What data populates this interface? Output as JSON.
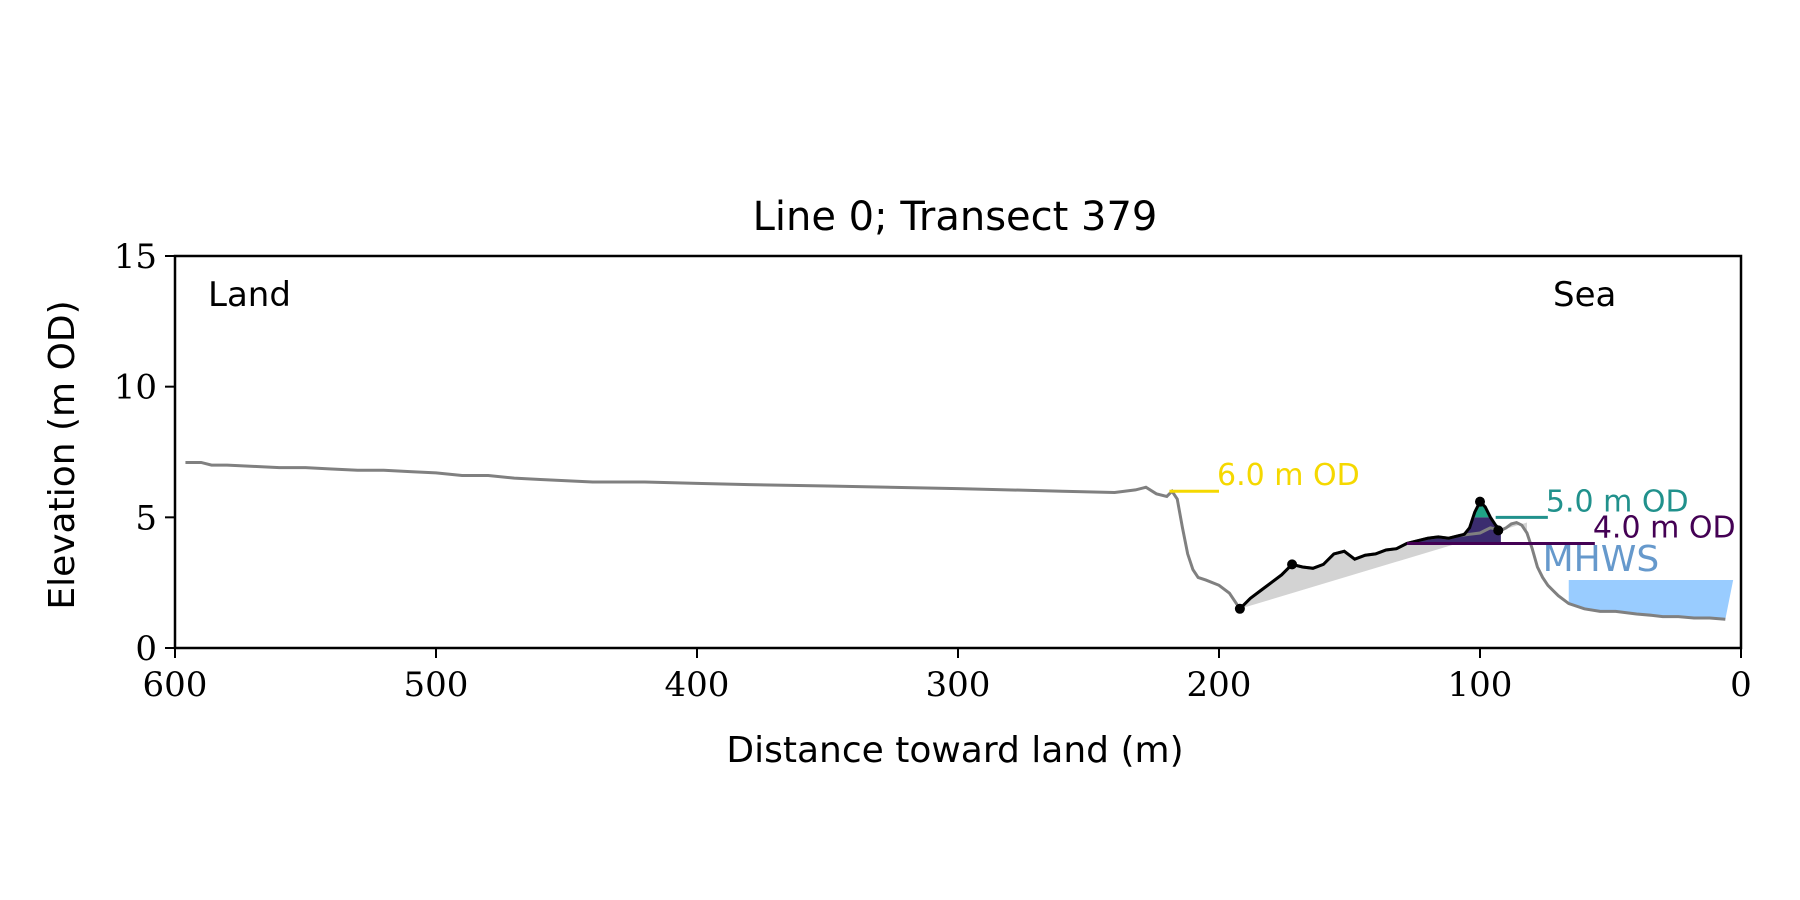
{
  "chart_data": {
    "type": "line",
    "title": "Line 0; Transect 379",
    "xlabel": "Distance toward land (m)",
    "ylabel": "Elevation (m OD)",
    "xlim": [
      600,
      0
    ],
    "ylim": [
      0,
      15
    ],
    "x_ticks": [
      600,
      500,
      400,
      300,
      200,
      100,
      0
    ],
    "x_tick_labels": [
      "600",
      "500",
      "400",
      "300",
      "200",
      "100",
      "0"
    ],
    "y_ticks": [
      0,
      5,
      10,
      15
    ],
    "y_tick_labels": [
      "0",
      "5",
      "10",
      "15"
    ],
    "grid": false,
    "legend": "none",
    "annotations": {
      "land": "Land",
      "sea": "Sea",
      "mhws": "MHWS"
    },
    "colors": {
      "profile": "#808080",
      "dune_profile": "#000000",
      "sea_fill": "#99ccff",
      "sediment_fill": "#d3d3d3",
      "mhws_text": "#6699cc"
    },
    "profile": {
      "x": [
        596,
        590,
        586,
        580,
        570,
        560,
        550,
        540,
        530,
        520,
        510,
        500,
        490,
        480,
        470,
        460,
        450,
        440,
        420,
        400,
        380,
        350,
        300,
        260,
        240,
        232,
        228,
        224,
        220,
        218,
        216,
        214,
        212,
        210,
        208,
        205,
        200,
        196,
        192,
        188,
        184,
        180,
        176,
        172,
        168,
        164,
        160,
        156,
        152,
        148,
        144,
        140,
        136,
        132,
        128,
        124,
        120,
        116,
        112,
        108,
        104,
        100,
        98,
        96,
        94,
        92,
        90,
        88,
        86,
        84,
        82,
        80,
        78,
        76,
        74,
        72,
        70,
        66,
        60,
        54,
        48,
        40,
        34,
        30,
        24,
        18,
        12,
        6
      ],
      "y": [
        7.1,
        7.1,
        7.0,
        7.0,
        6.95,
        6.9,
        6.9,
        6.85,
        6.8,
        6.8,
        6.75,
        6.7,
        6.6,
        6.6,
        6.5,
        6.45,
        6.4,
        6.35,
        6.35,
        6.3,
        6.25,
        6.2,
        6.1,
        6.0,
        5.95,
        6.05,
        6.15,
        5.9,
        5.8,
        6.0,
        5.7,
        4.6,
        3.6,
        3.0,
        2.7,
        2.6,
        2.4,
        2.1,
        1.5,
        1.9,
        2.2,
        2.5,
        2.8,
        3.2,
        3.1,
        3.05,
        3.2,
        3.6,
        3.7,
        3.4,
        3.55,
        3.6,
        3.75,
        3.8,
        4.0,
        4.1,
        4.2,
        4.25,
        4.2,
        4.3,
        4.35,
        4.4,
        4.5,
        4.6,
        4.55,
        4.5,
        4.6,
        4.75,
        4.8,
        4.7,
        4.4,
        3.8,
        3.1,
        2.7,
        2.4,
        2.2,
        2.0,
        1.7,
        1.5,
        1.4,
        1.4,
        1.3,
        1.25,
        1.2,
        1.2,
        1.15,
        1.15,
        1.1
      ]
    },
    "dune": {
      "x": [
        192,
        188,
        184,
        180,
        176,
        172,
        168,
        164,
        160,
        156,
        152,
        148,
        144,
        140,
        136,
        132,
        128,
        124,
        120,
        116,
        112,
        108,
        106,
        104,
        102,
        100,
        98,
        96,
        94,
        92
      ],
      "y": [
        1.5,
        1.9,
        2.2,
        2.5,
        2.8,
        3.2,
        3.1,
        3.05,
        3.2,
        3.6,
        3.7,
        3.4,
        3.55,
        3.6,
        3.75,
        3.8,
        4.0,
        4.1,
        4.2,
        4.25,
        4.2,
        4.3,
        4.35,
        4.6,
        5.2,
        5.6,
        5.4,
        5.0,
        4.7,
        4.5
      ]
    },
    "points": [
      {
        "x": 192,
        "y": 1.5
      },
      {
        "x": 172,
        "y": 3.2
      },
      {
        "x": 100,
        "y": 5.6
      },
      {
        "x": 93,
        "y": 4.5
      }
    ],
    "levels": [
      {
        "label": "6.0 m OD",
        "value": 6.0,
        "x_start": 219,
        "x_end": 200,
        "color": "#f5d800"
      },
      {
        "label": "5.0 m OD",
        "value": 5.0,
        "x_start": 94,
        "x_end": 74,
        "color": "#21918c"
      },
      {
        "label": "4.0 m OD",
        "value": 4.0,
        "x_start": 128,
        "x_end": 56,
        "color": "#440154"
      }
    ],
    "sediment_wedge": {
      "base_start": {
        "x": 192,
        "y": 1.5
      },
      "base_end": {
        "x": 82,
        "y": 4.8
      }
    },
    "sea": {
      "x_start": 66,
      "x_end": 3,
      "top": 2.6
    },
    "mhws_label_position": {
      "x": 76,
      "y": 3.4
    }
  }
}
